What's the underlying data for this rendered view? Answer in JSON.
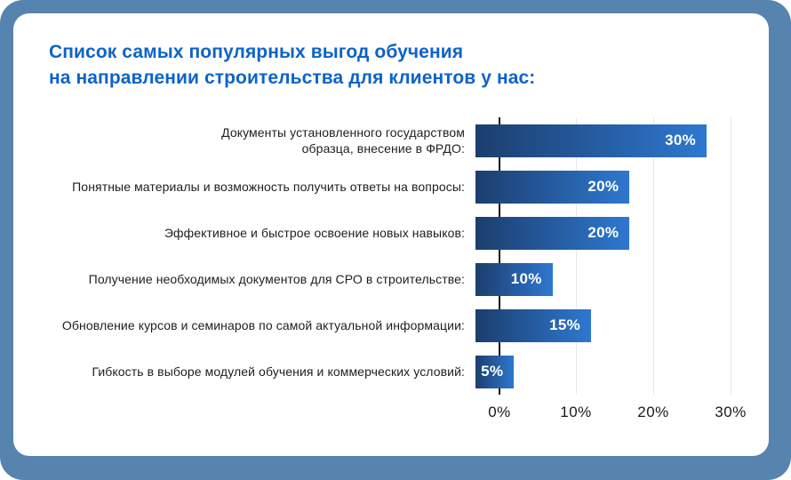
{
  "frame": {
    "background_color": "#5684ae",
    "card_background_color": "#ffffff"
  },
  "title": {
    "text": "Список самых популярных выгод обучения\nна направлении строительства для клиентов у нас:",
    "color": "#0d63c8"
  },
  "chart_data": {
    "type": "bar",
    "orientation": "horizontal",
    "title": "Список самых популярных выгод обучения на направлении строительства для клиентов у нас:",
    "categories": [
      "Документы установленного государством\nобразца, внесение в ФРДО:",
      "Понятные материалы и возможность получить ответы на вопросы:",
      "Эффективное и быстрое освоение новых навыков:",
      "Получение необходимых документов для СРО в строительстве:",
      "Обновление курсов и семинаров по самой актуальной информации:",
      "Гибкость в выборе модулей обучения и коммерческих условий:"
    ],
    "values": [
      30,
      20,
      20,
      10,
      15,
      5
    ],
    "value_labels": [
      "30%",
      "20%",
      "20%",
      "10%",
      "15%",
      "5%"
    ],
    "x_ticks": [
      "0%",
      "10%",
      "20%",
      "30%"
    ],
    "xlim": [
      0,
      30
    ],
    "xlabel": "",
    "ylabel": "",
    "grid": "vertical gridlines at 10, 20, 30",
    "legend": "none",
    "bar_gradient": [
      "#1c3e6e",
      "#2e78d0"
    ],
    "value_label_color": "#ffffff",
    "axis_line_color": "#131313",
    "gridline_color": "#e7e7e7",
    "tick_label_color": "#1a1a1a",
    "category_label_color": "#1e1e1e"
  }
}
